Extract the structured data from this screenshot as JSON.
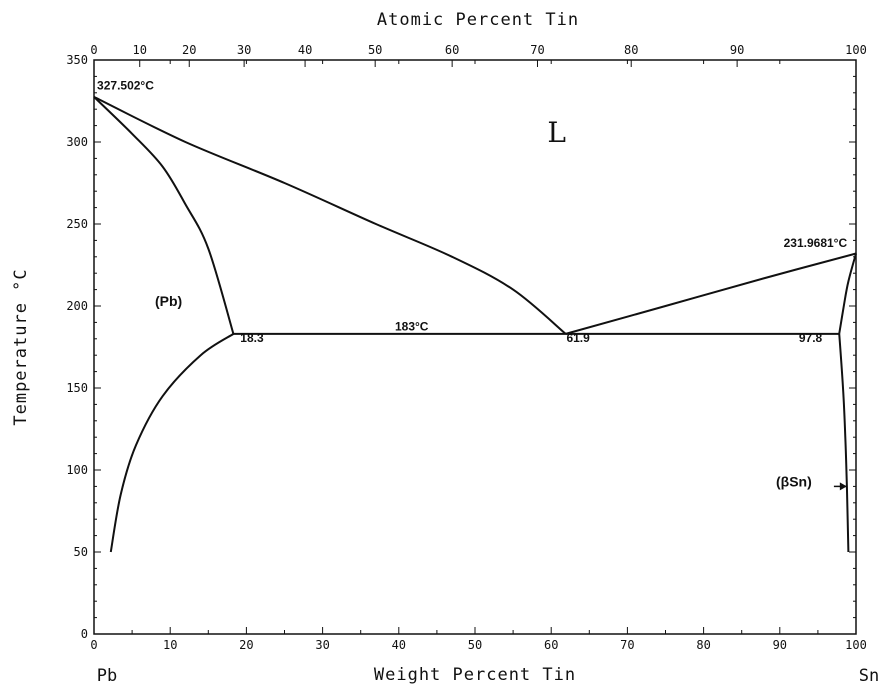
{
  "chart_data": {
    "type": "line",
    "title": "",
    "xlabel": "Weight Percent Tin",
    "x2label": "Atomic Percent Tin",
    "ylabel": "Temperature °C",
    "xlim": [
      0,
      100
    ],
    "ylim": [
      0,
      350
    ],
    "x_ticks": [
      0,
      10,
      20,
      30,
      40,
      50,
      60,
      70,
      80,
      90,
      100
    ],
    "y_ticks": [
      0,
      50,
      100,
      150,
      200,
      250,
      300,
      350
    ],
    "x2_ticks": [
      0,
      10,
      20,
      30,
      40,
      50,
      60,
      70,
      80,
      90,
      100
    ],
    "x2_tick_positions_wt": [
      0,
      6.0,
      12.5,
      19.7,
      27.7,
      36.9,
      47.0,
      58.2,
      70.5,
      84.4,
      100
    ],
    "series": [
      {
        "values": [
          [
            0,
            327.5
          ],
          [
            12.0,
            300
          ],
          [
            25.0,
            275
          ],
          [
            37.0,
            250
          ],
          [
            47.0,
            230
          ],
          [
            55.0,
            210
          ],
          [
            61.9,
            183
          ]
        ]
      },
      {
        "values": [
          [
            61.9,
            183
          ],
          [
            75.0,
            200
          ],
          [
            88.0,
            217
          ],
          [
            100,
            232
          ]
        ]
      },
      {
        "values": [
          [
            0,
            327.5
          ],
          [
            5.0,
            305
          ],
          [
            9.0,
            285
          ],
          [
            12.0,
            262
          ],
          [
            15.0,
            235
          ],
          [
            18.3,
            183
          ]
        ]
      },
      {
        "values": [
          [
            18.3,
            183
          ],
          [
            14.0,
            170
          ],
          [
            9.0,
            145
          ],
          [
            5.5,
            115
          ],
          [
            3.5,
            85
          ],
          [
            2.2,
            50
          ]
        ]
      },
      {
        "values": [
          [
            18.3,
            183
          ],
          [
            97.8,
            183
          ]
        ]
      },
      {
        "values": [
          [
            100,
            232
          ],
          [
            99.0,
            215
          ],
          [
            98.4,
            200
          ],
          [
            97.8,
            183
          ]
        ]
      },
      {
        "values": [
          [
            97.8,
            183
          ],
          [
            98.3,
            150
          ],
          [
            98.6,
            120
          ],
          [
            98.8,
            90
          ],
          [
            99.0,
            50
          ]
        ]
      }
    ],
    "annotations": [
      {
        "text": "327.502°C",
        "x": 0.4,
        "y": 332
      },
      {
        "text": "L",
        "x": 59.5,
        "y": 300
      },
      {
        "text": "231.9681°C",
        "x": 90.5,
        "y": 236
      },
      {
        "text": "(Pb)",
        "x": 8.0,
        "y": 200
      },
      {
        "text": "183°C",
        "x": 39.5,
        "y": 185
      },
      {
        "text": "18.3",
        "x": 19.2,
        "y": 178
      },
      {
        "text": "61.9",
        "x": 62.0,
        "y": 178
      },
      {
        "text": "97.8",
        "x": 92.5,
        "y": 178
      },
      {
        "text": "(βSn)",
        "x": 89.5,
        "y": 90
      }
    ],
    "grid": false,
    "legend": "none"
  },
  "labels": {
    "left_element": "Pb",
    "right_element": "Sn"
  }
}
